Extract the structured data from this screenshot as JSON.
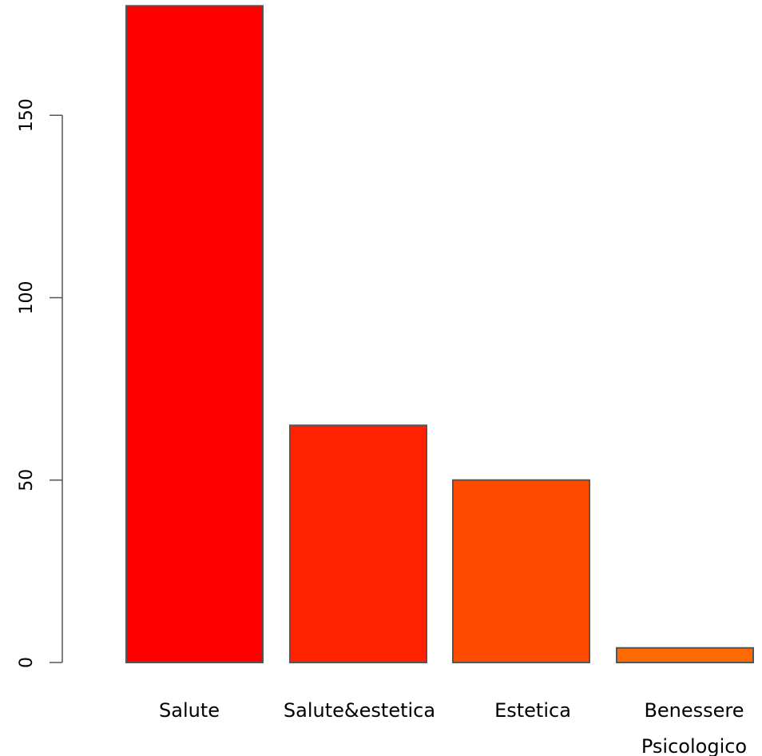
{
  "chart_data": {
    "type": "bar",
    "title": "",
    "xlabel": "",
    "ylabel": "",
    "categories": [
      [
        "Salute"
      ],
      [
        "Salute&estetica"
      ],
      [
        "Estetica"
      ],
      [
        "Benessere",
        "Psicologico"
      ]
    ],
    "values": [
      180,
      65,
      50,
      4
    ],
    "colors": [
      "#ff0000",
      "#ff2200",
      "#ff4b00",
      "#ff6a00"
    ],
    "bar_border_color": "#555555",
    "yticks": [
      0,
      50,
      100,
      150
    ],
    "ylim": [
      0,
      180
    ],
    "grid": false,
    "legend": "none"
  }
}
